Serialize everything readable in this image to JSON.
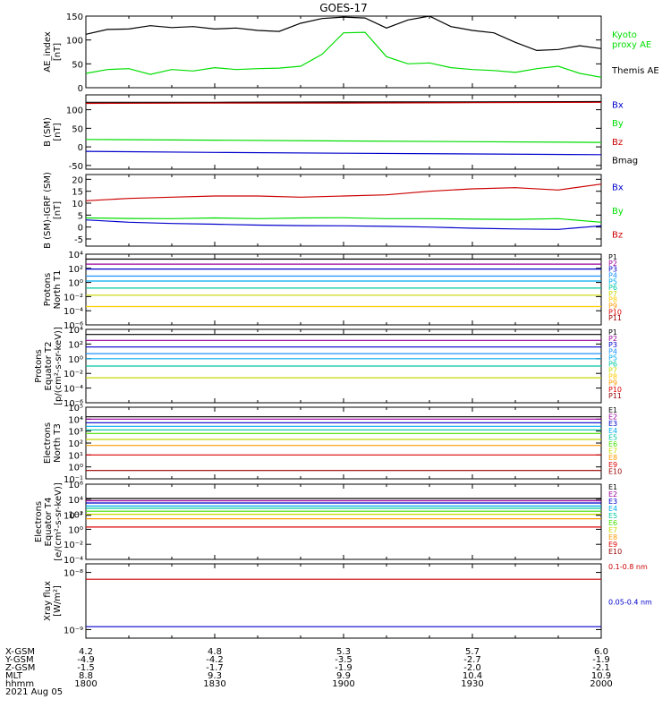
{
  "title": "GOES-17",
  "date_label": "2021 Aug 05",
  "colors": {
    "black": "#000000",
    "green": "#00dd00",
    "red": "#cc0000",
    "blue": "#0000cc",
    "darkred": "#990000",
    "navy": "#1010a0",
    "cyan": "#00aaee",
    "teal": "#00c8a0",
    "lime": "#44dd00",
    "yellow": "#c8d800",
    "orange": "#ff9900",
    "purple": "#990099"
  },
  "ephemeris": {
    "row_labels": [
      "X-GSM",
      "Y-GSM",
      "Z-GSM",
      "MLT",
      "hhmm"
    ],
    "columns": [
      [
        "4.2",
        "-4.9",
        "-1.5",
        "8.8",
        "1800"
      ],
      [
        "4.8",
        "-4.2",
        "-1.7",
        "9.3",
        "1830"
      ],
      [
        "5.3",
        "-3.5",
        "-1.9",
        "9.9",
        "1900"
      ],
      [
        "5.7",
        "-2.7",
        "-2.0",
        "10.4",
        "1930"
      ],
      [
        "6.0",
        "-1.9",
        "-2.1",
        "10.9",
        "2000"
      ]
    ]
  },
  "chart_data": [
    {
      "type": "line",
      "ylabel": "AE_index\n[nT]",
      "ylim": [
        0,
        150
      ],
      "ticks": [
        "0",
        "50",
        "100",
        "150"
      ],
      "legend": [
        {
          "text": "Kyoto\nproxy AE",
          "color": "#00dd00"
        },
        {
          "text": "Themis AE",
          "color": "#000000"
        }
      ],
      "x": [
        1800,
        1805,
        1810,
        1815,
        1820,
        1825,
        1830,
        1835,
        1840,
        1845,
        1850,
        1855,
        1900,
        1905,
        1910,
        1915,
        1920,
        1925,
        1930,
        1935,
        1940,
        1945,
        1950,
        1955,
        2000
      ],
      "series": [
        {
          "name": "Themis AE",
          "color": "#000000",
          "values": [
            112,
            122,
            123,
            130,
            126,
            128,
            123,
            125,
            120,
            118,
            135,
            145,
            148,
            146,
            125,
            142,
            150,
            128,
            120,
            115,
            95,
            78,
            80,
            88,
            82
          ]
        },
        {
          "name": "Kyoto proxy AE",
          "color": "#00dd00",
          "values": [
            30,
            38,
            40,
            28,
            38,
            35,
            42,
            38,
            40,
            41,
            45,
            70,
            115,
            116,
            65,
            50,
            52,
            42,
            38,
            36,
            32,
            40,
            45,
            30,
            22
          ]
        }
      ]
    },
    {
      "type": "line",
      "ylabel": "B (SM)\n[nT]",
      "ylim": [
        -60,
        140
      ],
      "ticks": [
        "-50",
        "0",
        "50",
        "100"
      ],
      "legend": [
        {
          "text": "Bx",
          "color": "#0000cc"
        },
        {
          "text": "By",
          "color": "#00dd00"
        },
        {
          "text": "Bz",
          "color": "#cc0000"
        },
        {
          "text": "Bmag",
          "color": "#000000"
        }
      ],
      "x": [
        1800,
        1830,
        1900,
        1930,
        2000
      ],
      "series": [
        {
          "name": "Bmag",
          "color": "#000000",
          "values": [
            120,
            120,
            121,
            121,
            122
          ]
        },
        {
          "name": "Bz",
          "color": "#cc0000",
          "values": [
            117,
            118,
            118,
            119,
            120
          ]
        },
        {
          "name": "By",
          "color": "#00dd00",
          "values": [
            20,
            18,
            16,
            14,
            12
          ]
        },
        {
          "name": "Bx",
          "color": "#0000cc",
          "values": [
            -12,
            -15,
            -17,
            -19,
            -21
          ]
        }
      ]
    },
    {
      "type": "line",
      "ylabel": "B (SM)-IGRF (SM)\n[nT]",
      "ylim": [
        -8,
        22
      ],
      "ticks": [
        "-5",
        "0",
        "5",
        "10",
        "15",
        "20"
      ],
      "legend": [
        {
          "text": "Bx",
          "color": "#0000cc"
        },
        {
          "text": "By",
          "color": "#00dd00"
        },
        {
          "text": "Bz",
          "color": "#cc0000"
        }
      ],
      "x": [
        1800,
        1810,
        1820,
        1830,
        1840,
        1850,
        1900,
        1910,
        1920,
        1930,
        1940,
        1950,
        2000
      ],
      "series": [
        {
          "name": "Bz",
          "color": "#cc0000",
          "values": [
            11,
            12,
            12.5,
            13,
            13,
            12.5,
            13,
            13.5,
            15,
            16,
            16.5,
            15.5,
            18
          ]
        },
        {
          "name": "By",
          "color": "#00dd00",
          "values": [
            3.8,
            3.6,
            3.5,
            3.8,
            3.5,
            3.8,
            3.9,
            3.5,
            3.5,
            3.3,
            3.2,
            3.5,
            2
          ]
        },
        {
          "name": "Bx",
          "color": "#0000cc",
          "values": [
            3,
            2,
            1.5,
            1.2,
            0.8,
            0.6,
            0.5,
            0.3,
            0,
            -0.5,
            -0.8,
            -1,
            0.5
          ]
        }
      ]
    },
    {
      "type": "line",
      "log": true,
      "ylabel": "Protons\nNorth T1",
      "ylim": [
        -6,
        4
      ],
      "ticks": [
        "10⁻⁶",
        "10⁻⁴",
        "10⁻²",
        "10⁰",
        "10²",
        "10⁴"
      ],
      "legend": [
        {
          "text": "P1",
          "color": "#000000"
        },
        {
          "text": "P2",
          "color": "#990099"
        },
        {
          "text": "P3",
          "color": "#0000cc"
        },
        {
          "text": "P4",
          "color": "#1e90ff"
        },
        {
          "text": "P5",
          "color": "#00aaee"
        },
        {
          "text": "P6",
          "color": "#00c8a0"
        },
        {
          "text": "P7",
          "color": "#c8d800"
        },
        {
          "text": "P8",
          "color": "#ffcc00"
        },
        {
          "text": "P9",
          "color": "#ff9900"
        },
        {
          "text": "P10",
          "color": "#dd0000"
        },
        {
          "text": "P11",
          "color": "#990000"
        }
      ],
      "series": [
        {
          "name": "P1",
          "color": "#000000",
          "values": [
            3.3
          ]
        },
        {
          "name": "P2",
          "color": "#990099",
          "values": [
            2.6
          ]
        },
        {
          "name": "P3",
          "color": "#0000cc",
          "values": [
            1.9
          ]
        },
        {
          "name": "P4",
          "color": "#1e90ff",
          "values": [
            0.9
          ]
        },
        {
          "name": "P5",
          "color": "#00aaee",
          "values": [
            0.2
          ]
        },
        {
          "name": "P6",
          "color": "#00c8a0",
          "values": [
            -0.8
          ]
        },
        {
          "name": "P7",
          "color": "#c8d800",
          "values": [
            -1.8
          ]
        },
        {
          "name": "P8",
          "color": "#ffcc00",
          "values": [
            -3.4
          ]
        }
      ]
    },
    {
      "type": "line",
      "log": true,
      "ylabel": "Protons\nEquator T2\n[p/(cm²-s-sr-keV)]",
      "ylim": [
        -6,
        4
      ],
      "ticks": [
        "10⁻⁶",
        "10⁻⁴",
        "10⁻²",
        "10⁰",
        "10²",
        "10⁴"
      ],
      "legend": [
        {
          "text": "P1",
          "color": "#000000"
        },
        {
          "text": "P2",
          "color": "#990099"
        },
        {
          "text": "P3",
          "color": "#0000cc"
        },
        {
          "text": "P4",
          "color": "#1e90ff"
        },
        {
          "text": "P5",
          "color": "#00aaee"
        },
        {
          "text": "P6",
          "color": "#00c8a0"
        },
        {
          "text": "P7",
          "color": "#c8d800"
        },
        {
          "text": "P8",
          "color": "#ffcc00"
        },
        {
          "text": "P9",
          "color": "#ff9900"
        },
        {
          "text": "P10",
          "color": "#dd0000"
        },
        {
          "text": "P11",
          "color": "#990000"
        }
      ],
      "series": [
        {
          "name": "P1",
          "color": "#000000",
          "values": [
            3.3
          ]
        },
        {
          "name": "P2",
          "color": "#990099",
          "values": [
            2.5
          ]
        },
        {
          "name": "P3",
          "color": "#0000cc",
          "values": [
            1.6
          ]
        },
        {
          "name": "P4",
          "color": "#1e90ff",
          "values": [
            0.7
          ]
        },
        {
          "name": "P5",
          "color": "#00aaee",
          "values": [
            0.0
          ]
        },
        {
          "name": "P6",
          "color": "#00c8a0",
          "values": [
            -1.0
          ]
        },
        {
          "name": "P7",
          "color": "#c8d800",
          "values": [
            -2.6
          ]
        }
      ]
    },
    {
      "type": "line",
      "log": true,
      "ylabel": "Electrons\nNorth T3",
      "ylim": [
        -1,
        5
      ],
      "ticks": [
        "10⁻¹",
        "10⁰",
        "10¹",
        "10²",
        "10³",
        "10⁴",
        "10⁵"
      ],
      "legend": [
        {
          "text": "E1",
          "color": "#000000"
        },
        {
          "text": "E2",
          "color": "#990099"
        },
        {
          "text": "E3",
          "color": "#0000cc"
        },
        {
          "text": "E4",
          "color": "#00aaee"
        },
        {
          "text": "E5",
          "color": "#00c8a0"
        },
        {
          "text": "E6",
          "color": "#44dd00"
        },
        {
          "text": "E7",
          "color": "#c8d800"
        },
        {
          "text": "E8",
          "color": "#ff9900"
        },
        {
          "text": "E9",
          "color": "#dd0000"
        },
        {
          "text": "E10",
          "color": "#990000"
        }
      ],
      "series": [
        {
          "name": "E1",
          "color": "#000000",
          "values": [
            4.2
          ]
        },
        {
          "name": "E2",
          "color": "#990099",
          "values": [
            4.0
          ]
        },
        {
          "name": "E3",
          "color": "#0000cc",
          "values": [
            3.7
          ]
        },
        {
          "name": "E4",
          "color": "#00aaee",
          "values": [
            3.4
          ]
        },
        {
          "name": "E5",
          "color": "#00c8a0",
          "values": [
            3.1
          ]
        },
        {
          "name": "E6",
          "color": "#44dd00",
          "values": [
            2.8
          ]
        },
        {
          "name": "E7",
          "color": "#c8d800",
          "values": [
            2.3
          ]
        },
        {
          "name": "E8",
          "color": "#ff9900",
          "values": [
            1.8
          ]
        },
        {
          "name": "E9",
          "color": "#dd0000",
          "values": [
            1.0
          ]
        },
        {
          "name": "E10",
          "color": "#990000",
          "values": [
            -0.3
          ]
        }
      ]
    },
    {
      "type": "line",
      "log": true,
      "ylabel": "Electrons\nEquator T4\n[e/(cm²-s-sr-keV)]",
      "ylim": [
        -4,
        6
      ],
      "ticks": [
        "10⁻⁴",
        "10⁻²",
        "10⁰",
        "10²",
        "10⁴",
        "10⁶"
      ],
      "legend": [
        {
          "text": "E1",
          "color": "#000000"
        },
        {
          "text": "E2",
          "color": "#990099"
        },
        {
          "text": "E3",
          "color": "#0000cc"
        },
        {
          "text": "E4",
          "color": "#00aaee"
        },
        {
          "text": "E5",
          "color": "#00c8a0"
        },
        {
          "text": "E6",
          "color": "#44dd00"
        },
        {
          "text": "E7",
          "color": "#c8d800"
        },
        {
          "text": "E8",
          "color": "#ff9900"
        },
        {
          "text": "E9",
          "color": "#dd0000"
        },
        {
          "text": "E10",
          "color": "#990000"
        }
      ],
      "series": [
        {
          "name": "E1",
          "color": "#000000",
          "values": [
            4.1
          ]
        },
        {
          "name": "E2",
          "color": "#990099",
          "values": [
            3.8
          ]
        },
        {
          "name": "E3",
          "color": "#0000cc",
          "values": [
            3.5
          ]
        },
        {
          "name": "E4",
          "color": "#00aaee",
          "values": [
            3.1
          ]
        },
        {
          "name": "E5",
          "color": "#00c8a0",
          "values": [
            2.8
          ]
        },
        {
          "name": "E6",
          "color": "#44dd00",
          "values": [
            2.4
          ]
        },
        {
          "name": "E7",
          "color": "#c8d800",
          "values": [
            2.0
          ]
        },
        {
          "name": "E8",
          "color": "#ff9900",
          "values": [
            1.4
          ]
        },
        {
          "name": "E9",
          "color": "#dd0000",
          "values": [
            0.3
          ]
        }
      ]
    },
    {
      "type": "line",
      "log": true,
      "ylabel": "Xray flux\n[W/m²]",
      "ylim": [
        -9.15,
        -7.85
      ],
      "ticks": [
        "10⁻⁹",
        "10⁻⁸",
        "10⁻⁷"
      ],
      "legend": [
        {
          "text": "0.1-0.8 nm",
          "color": "#cc0000"
        },
        {
          "text": "0.05-0.4 nm",
          "color": "#0000cc"
        }
      ],
      "series": [
        {
          "name": "0.1-0.8 nm",
          "color": "#cc0000",
          "values": [
            -8.12
          ]
        },
        {
          "name": "0.05-0.4 nm",
          "color": "#0000cc",
          "values": [
            -8.95
          ]
        }
      ]
    }
  ]
}
